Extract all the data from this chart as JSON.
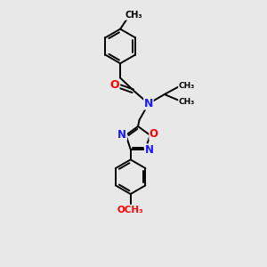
{
  "background_color": "#e8e8e8",
  "bond_color": "#000000",
  "bond_width": 1.4,
  "atom_colors": {
    "N": "#1a1aff",
    "O": "#ff0000",
    "C": "#000000"
  },
  "figsize": [
    3.0,
    3.0
  ],
  "dpi": 100,
  "xlim": [
    0,
    10
  ],
  "ylim": [
    0,
    10
  ]
}
